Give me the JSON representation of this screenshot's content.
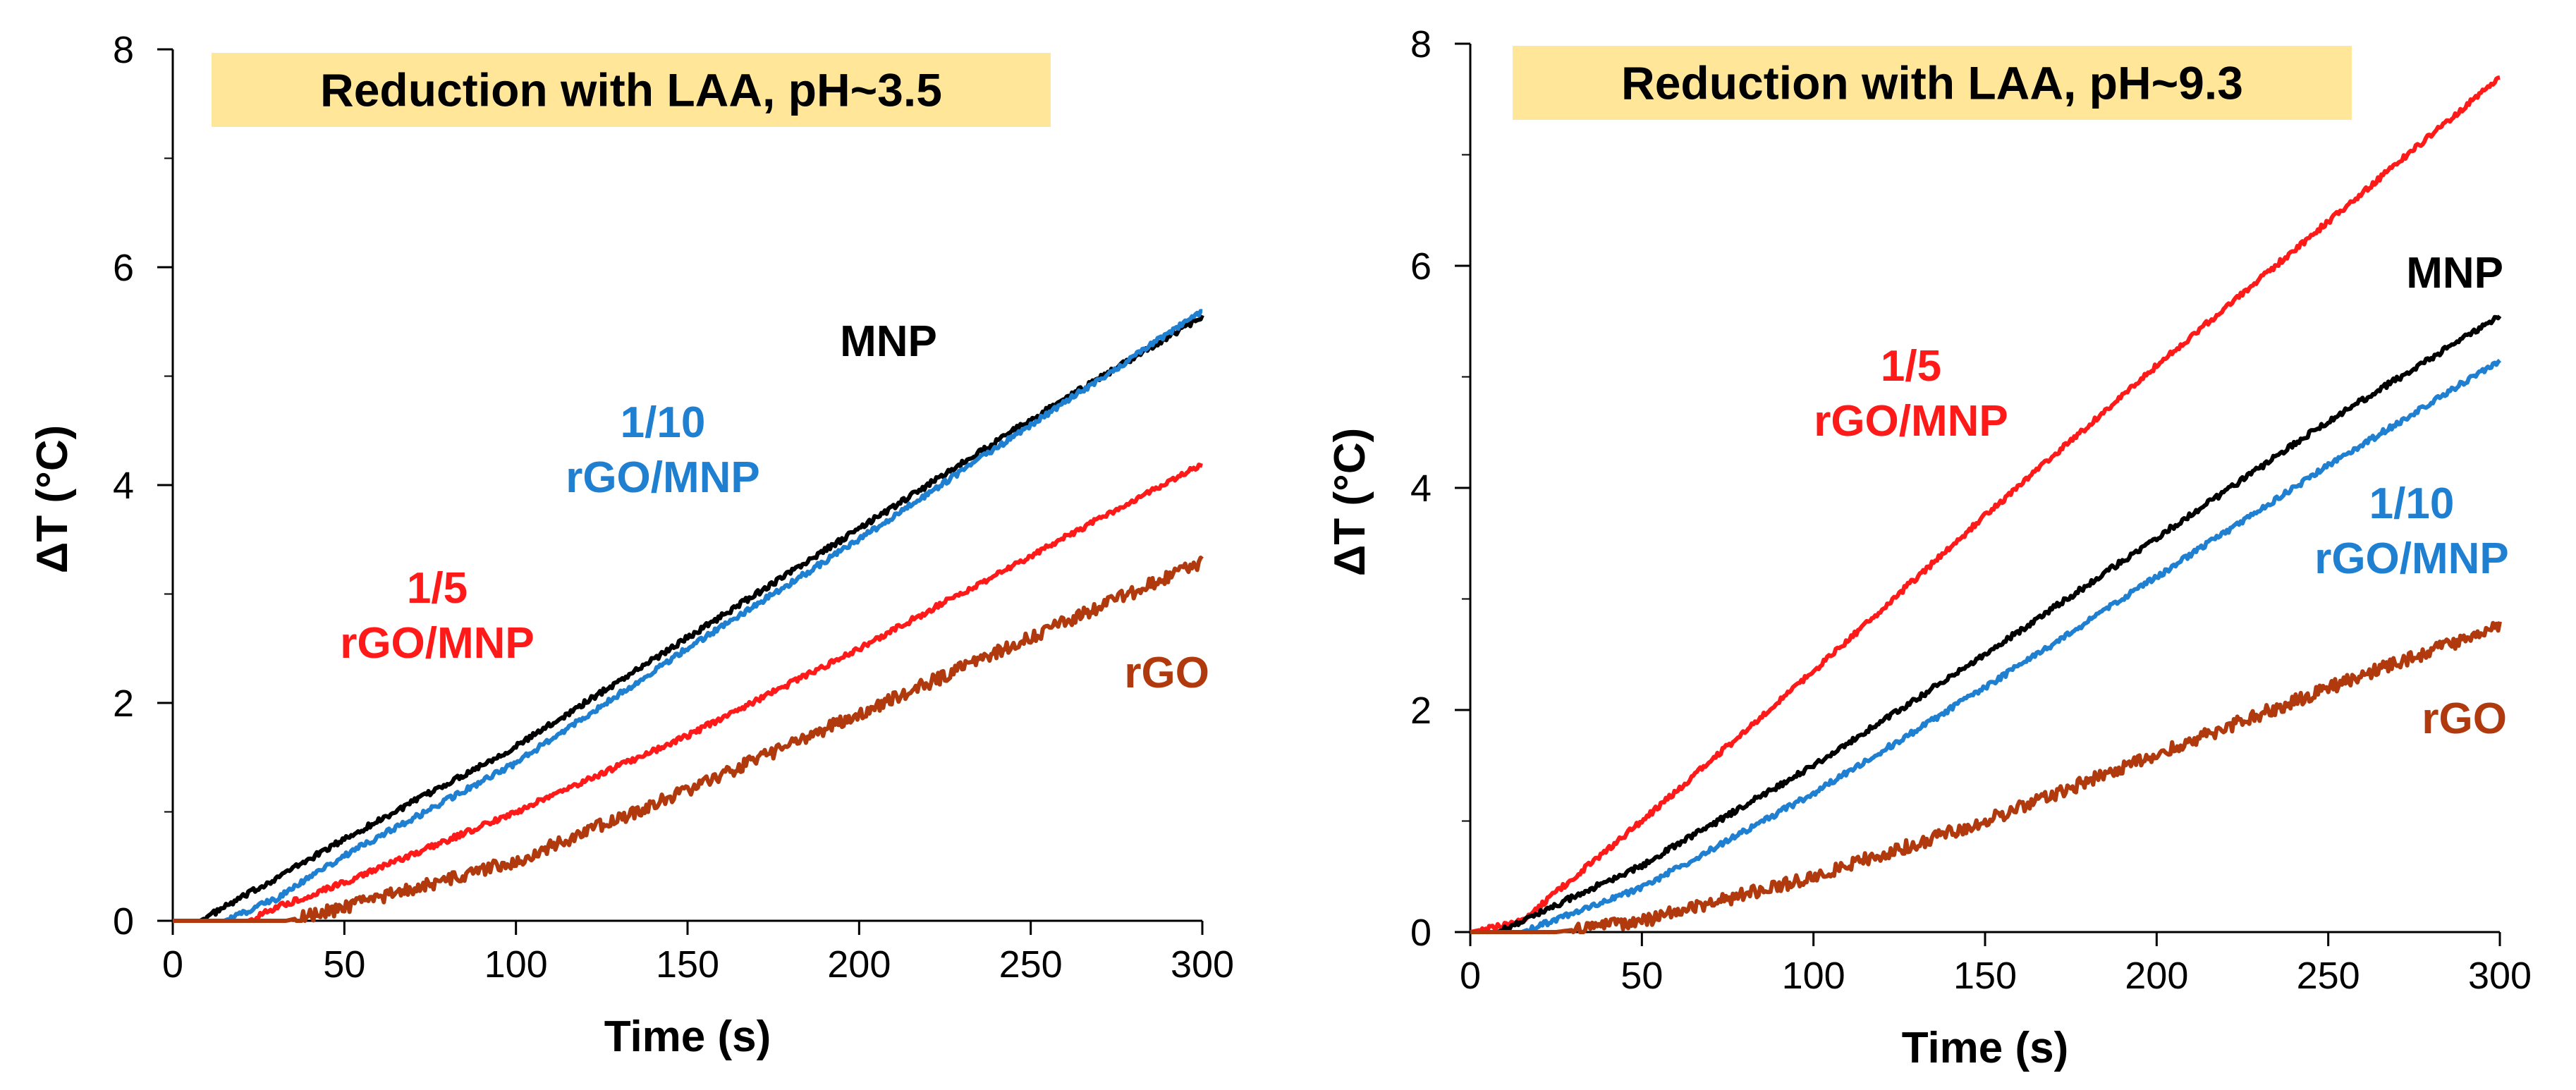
{
  "chart_data": [
    {
      "type": "line",
      "title": "Reduction with LAA, pH~3.5",
      "xlabel": "Time (s)",
      "ylabel": "ΔT (°C)",
      "xlim": [
        0,
        300
      ],
      "ylim": [
        0,
        8
      ],
      "xticks": [
        0,
        50,
        100,
        150,
        200,
        250,
        300
      ],
      "yticks": [
        0,
        2,
        4,
        6,
        8
      ],
      "grid": false,
      "colors": {
        "title_bg": "#FFE699"
      },
      "series": [
        {
          "name": "MNP",
          "color": "#000000",
          "x": [
            0,
            8,
            25,
            50,
            100,
            150,
            200,
            250,
            300
          ],
          "y": [
            0,
            0,
            0.3,
            0.75,
            1.6,
            2.6,
            3.6,
            4.6,
            5.55
          ]
        },
        {
          "name": "1/10 rGO/MNP",
          "color": "#1F7FD0",
          "x": [
            0,
            15,
            30,
            50,
            100,
            150,
            200,
            250,
            300
          ],
          "y": [
            0,
            0,
            0.2,
            0.6,
            1.45,
            2.5,
            3.5,
            4.55,
            5.6
          ]
        },
        {
          "name": "1/5 rGO/MNP",
          "color": "#FF1A1A",
          "x": [
            0,
            22,
            30,
            50,
            100,
            150,
            200,
            250,
            300
          ],
          "y": [
            0,
            0,
            0.12,
            0.35,
            1.0,
            1.7,
            2.5,
            3.35,
            4.2
          ]
        },
        {
          "name": "rGO",
          "color": "#B03A0E",
          "x": [
            0,
            33,
            50,
            100,
            150,
            200,
            250,
            300
          ],
          "y": [
            0,
            0,
            0.12,
            0.55,
            1.2,
            1.9,
            2.6,
            3.3
          ]
        }
      ],
      "annotations": [
        {
          "id": "mnp",
          "lines": [
            "MNP"
          ],
          "color": "#000000"
        },
        {
          "id": "r10",
          "lines": [
            "1/10",
            "rGO/MNP"
          ],
          "color": "#1F7FD0"
        },
        {
          "id": "r5",
          "lines": [
            "1/5",
            "rGO/MNP"
          ],
          "color": "#FF1A1A"
        },
        {
          "id": "rgo",
          "lines": [
            "rGO"
          ],
          "color": "#B03A0E"
        }
      ]
    },
    {
      "type": "line",
      "title": "Reduction with LAA, pH~9.3",
      "xlabel": "Time (s)",
      "ylabel": "ΔT (°C)",
      "xlim": [
        0,
        300
      ],
      "ylim": [
        0,
        8
      ],
      "xticks": [
        0,
        50,
        100,
        150,
        200,
        250,
        300
      ],
      "yticks": [
        0,
        2,
        4,
        6,
        8
      ],
      "grid": false,
      "colors": {
        "title_bg": "#FFE699"
      },
      "series": [
        {
          "name": "1/5 rGO/MNP",
          "color": "#FF1A1A",
          "x": [
            0,
            15,
            50,
            100,
            150,
            200,
            250,
            300
          ],
          "y": [
            0,
            0.1,
            1.0,
            2.35,
            3.75,
            5.1,
            6.4,
            7.7
          ]
        },
        {
          "name": "MNP",
          "color": "#000000",
          "x": [
            0,
            8,
            50,
            100,
            150,
            200,
            250,
            300
          ],
          "y": [
            0,
            0,
            0.6,
            1.5,
            2.5,
            3.55,
            4.6,
            5.55
          ]
        },
        {
          "name": "1/10 rGO/MNP",
          "color": "#1F7FD0",
          "x": [
            0,
            15,
            50,
            100,
            150,
            200,
            250,
            300
          ],
          "y": [
            0,
            0,
            0.4,
            1.25,
            2.2,
            3.2,
            4.2,
            5.15
          ]
        },
        {
          "name": "rGO",
          "color": "#B03A0E",
          "x": [
            0,
            25,
            50,
            100,
            150,
            200,
            250,
            300
          ],
          "y": [
            0,
            0,
            0.1,
            0.5,
            1.0,
            1.6,
            2.2,
            2.75
          ]
        }
      ],
      "annotations": [
        {
          "id": "r5",
          "lines": [
            "1/5",
            "rGO/MNP"
          ],
          "color": "#FF1A1A"
        },
        {
          "id": "mnp",
          "lines": [
            "MNP"
          ],
          "color": "#000000"
        },
        {
          "id": "r10",
          "lines": [
            "1/10",
            "rGO/MNP"
          ],
          "color": "#1F7FD0"
        },
        {
          "id": "rgo",
          "lines": [
            "rGO"
          ],
          "color": "#B03A0E"
        }
      ]
    }
  ]
}
